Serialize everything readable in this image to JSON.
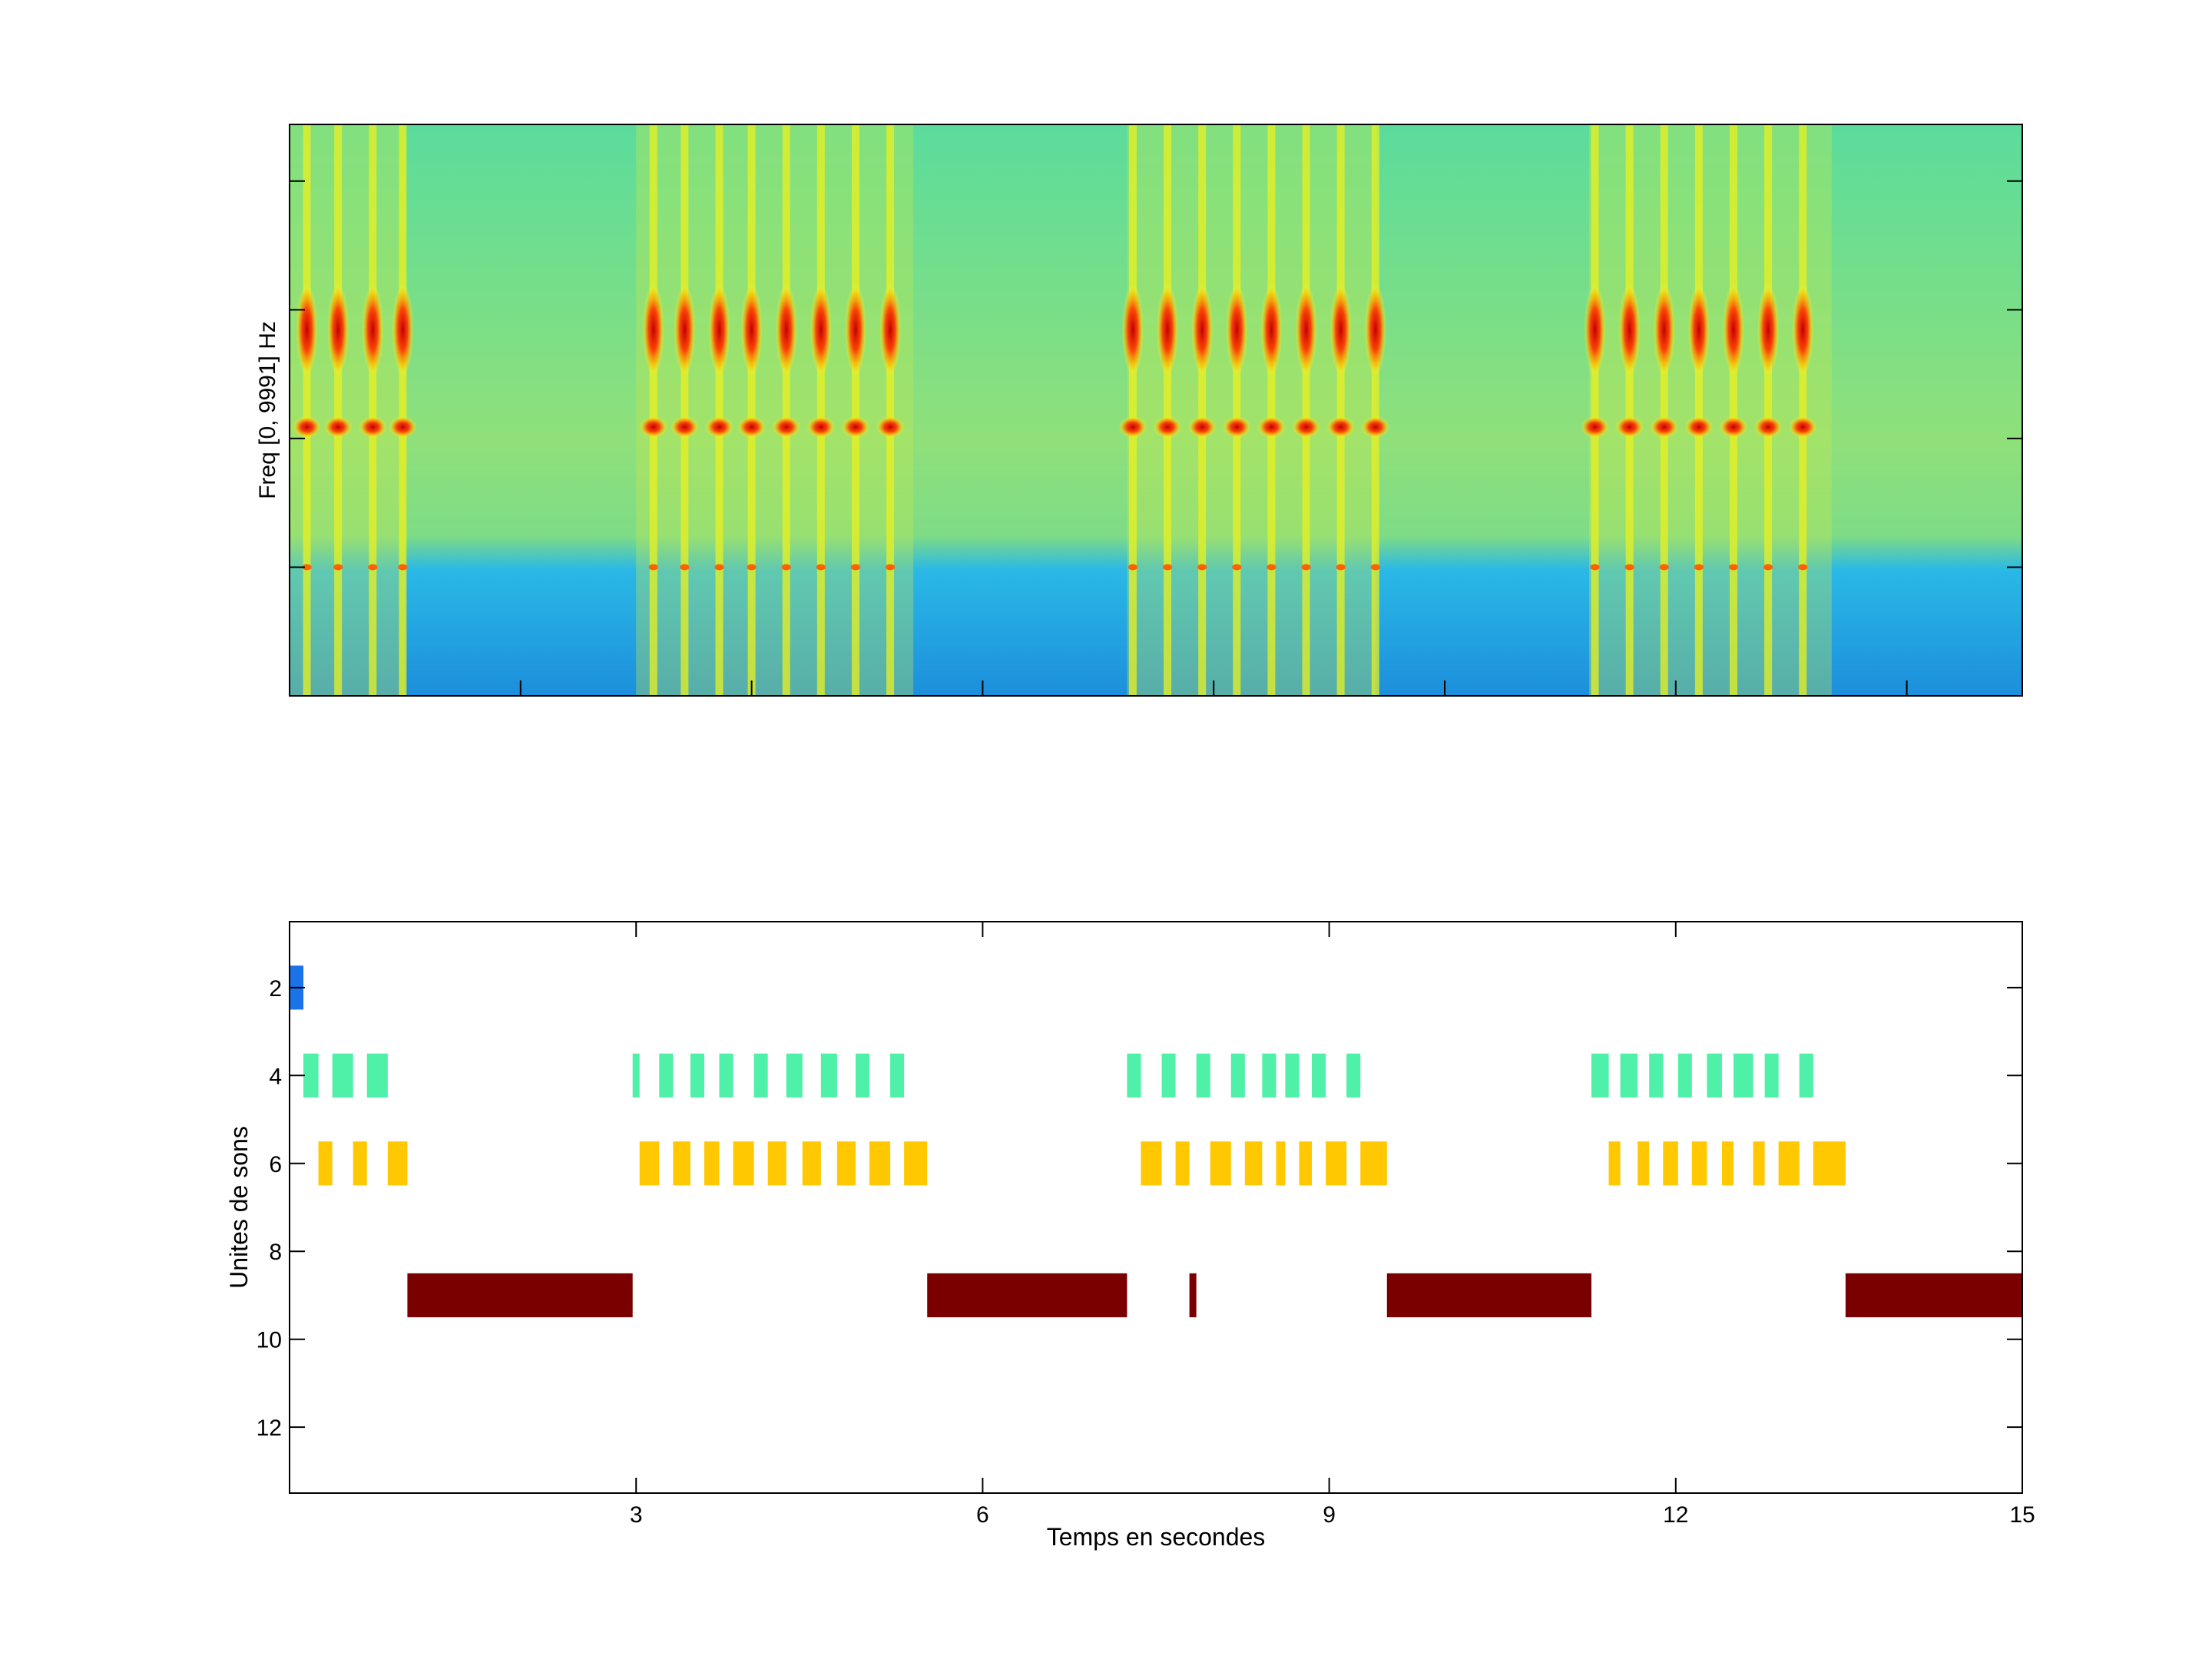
{
  "chart_data": [
    {
      "type": "heatmap",
      "ylabel": "Freq [0, 9991] Hz",
      "xlim": [
        0,
        15
      ],
      "ylim": [
        0,
        9991
      ],
      "colormap": "jet",
      "x_tick_values": [
        2,
        4,
        6,
        8,
        10,
        12,
        14
      ],
      "y_tick_values": [
        2250,
        4500,
        6750,
        9000
      ],
      "song_bouts": [
        [
          0.0,
          1.0
        ],
        [
          3.0,
          5.4
        ],
        [
          7.25,
          9.4
        ],
        [
          11.25,
          13.35
        ]
      ],
      "pulse_times": [
        [
          0.15,
          0.42,
          0.72,
          0.98
        ],
        [
          3.15,
          3.42,
          3.72,
          4.0,
          4.3,
          4.6,
          4.9,
          5.2
        ],
        [
          7.3,
          7.6,
          7.9,
          8.2,
          8.5,
          8.8,
          9.1,
          9.4
        ],
        [
          11.3,
          11.6,
          11.9,
          12.2,
          12.5,
          12.8,
          13.1
        ]
      ],
      "band_frequencies_hz": [
        2250,
        4700,
        6400
      ]
    },
    {
      "type": "bar",
      "orientation": "horizontal",
      "xlabel": "Temps en secondes",
      "ylabel": "Unites de sons",
      "xlim": [
        0,
        15
      ],
      "ylim": [
        13.5,
        0.5
      ],
      "y_reversed": true,
      "x_ticks": [
        "3",
        "6",
        "9",
        "12",
        "15"
      ],
      "x_tick_values": [
        3,
        6,
        9,
        12,
        15
      ],
      "y_ticks": [
        "2",
        "4",
        "6",
        "8",
        "10",
        "12"
      ],
      "y_tick_values": [
        2,
        4,
        6,
        8,
        10,
        12
      ],
      "bar_half_height": 0.5,
      "series": [
        {
          "unit": 2,
          "color": "#1a73e8",
          "intervals": [
            [
              0.0,
              0.12
            ]
          ]
        },
        {
          "unit": 4,
          "color": "#4ff0a8",
          "intervals": [
            [
              0.12,
              0.25
            ],
            [
              0.37,
              0.55
            ],
            [
              0.67,
              0.85
            ],
            [
              2.97,
              3.03
            ],
            [
              3.2,
              3.32
            ],
            [
              3.47,
              3.59
            ],
            [
              3.72,
              3.84
            ],
            [
              4.02,
              4.14
            ],
            [
              4.3,
              4.44
            ],
            [
              4.6,
              4.74
            ],
            [
              4.9,
              5.02
            ],
            [
              5.2,
              5.32
            ],
            [
              7.25,
              7.37
            ],
            [
              7.55,
              7.67
            ],
            [
              7.85,
              7.97
            ],
            [
              8.15,
              8.27
            ],
            [
              8.42,
              8.54
            ],
            [
              8.62,
              8.74
            ],
            [
              8.85,
              8.97
            ],
            [
              9.15,
              9.27
            ],
            [
              11.27,
              11.42
            ],
            [
              11.52,
              11.67
            ],
            [
              11.77,
              11.89
            ],
            [
              12.02,
              12.14
            ],
            [
              12.27,
              12.4
            ],
            [
              12.5,
              12.67
            ],
            [
              12.77,
              12.89
            ],
            [
              13.07,
              13.19
            ]
          ]
        },
        {
          "unit": 6,
          "color": "#ffc800",
          "intervals": [
            [
              0.25,
              0.37
            ],
            [
              0.55,
              0.67
            ],
            [
              0.85,
              1.02
            ],
            [
              3.03,
              3.2
            ],
            [
              3.32,
              3.47
            ],
            [
              3.59,
              3.72
            ],
            [
              3.84,
              4.02
            ],
            [
              4.14,
              4.3
            ],
            [
              4.44,
              4.6
            ],
            [
              4.74,
              4.9
            ],
            [
              5.02,
              5.2
            ],
            [
              5.32,
              5.52
            ],
            [
              7.37,
              7.55
            ],
            [
              7.67,
              7.79
            ],
            [
              7.97,
              8.15
            ],
            [
              8.27,
              8.42
            ],
            [
              8.54,
              8.62
            ],
            [
              8.74,
              8.85
            ],
            [
              8.97,
              9.15
            ],
            [
              9.27,
              9.5
            ],
            [
              11.42,
              11.52
            ],
            [
              11.67,
              11.77
            ],
            [
              11.89,
              12.02
            ],
            [
              12.14,
              12.27
            ],
            [
              12.4,
              12.5
            ],
            [
              12.67,
              12.77
            ],
            [
              12.89,
              13.07
            ],
            [
              13.19,
              13.47
            ]
          ]
        },
        {
          "unit": 9,
          "color": "#7a0000",
          "intervals": [
            [
              1.02,
              2.97
            ],
            [
              5.52,
              7.25
            ],
            [
              7.79,
              7.85
            ],
            [
              9.5,
              11.27
            ],
            [
              13.47,
              15.0
            ]
          ]
        }
      ]
    }
  ]
}
